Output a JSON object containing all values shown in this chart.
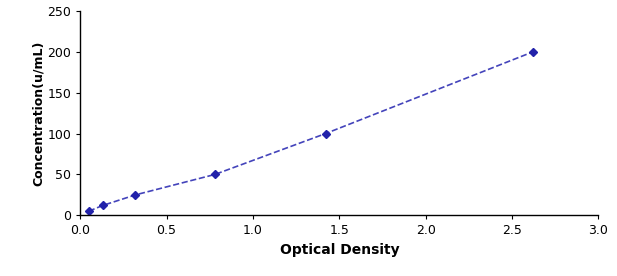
{
  "x": [
    0.05,
    0.13,
    0.32,
    0.78,
    1.42,
    2.62
  ],
  "y": [
    5,
    12,
    25,
    50,
    100,
    200
  ],
  "line_color": "#4444bb",
  "marker_color": "#2222aa",
  "marker": "D",
  "marker_size": 4,
  "line_style": "--",
  "line_width": 1.2,
  "xlabel": "Optical Density",
  "ylabel": "Concentration(u/mL)",
  "xlim": [
    0,
    3
  ],
  "ylim": [
    0,
    250
  ],
  "xticks": [
    0,
    0.5,
    1,
    1.5,
    2,
    2.5,
    3
  ],
  "yticks": [
    0,
    50,
    100,
    150,
    200,
    250
  ],
  "xlabel_fontsize": 10,
  "ylabel_fontsize": 9,
  "tick_fontsize": 9,
  "xlabel_bold": true,
  "ylabel_bold": true,
  "background_color": "#ffffff"
}
